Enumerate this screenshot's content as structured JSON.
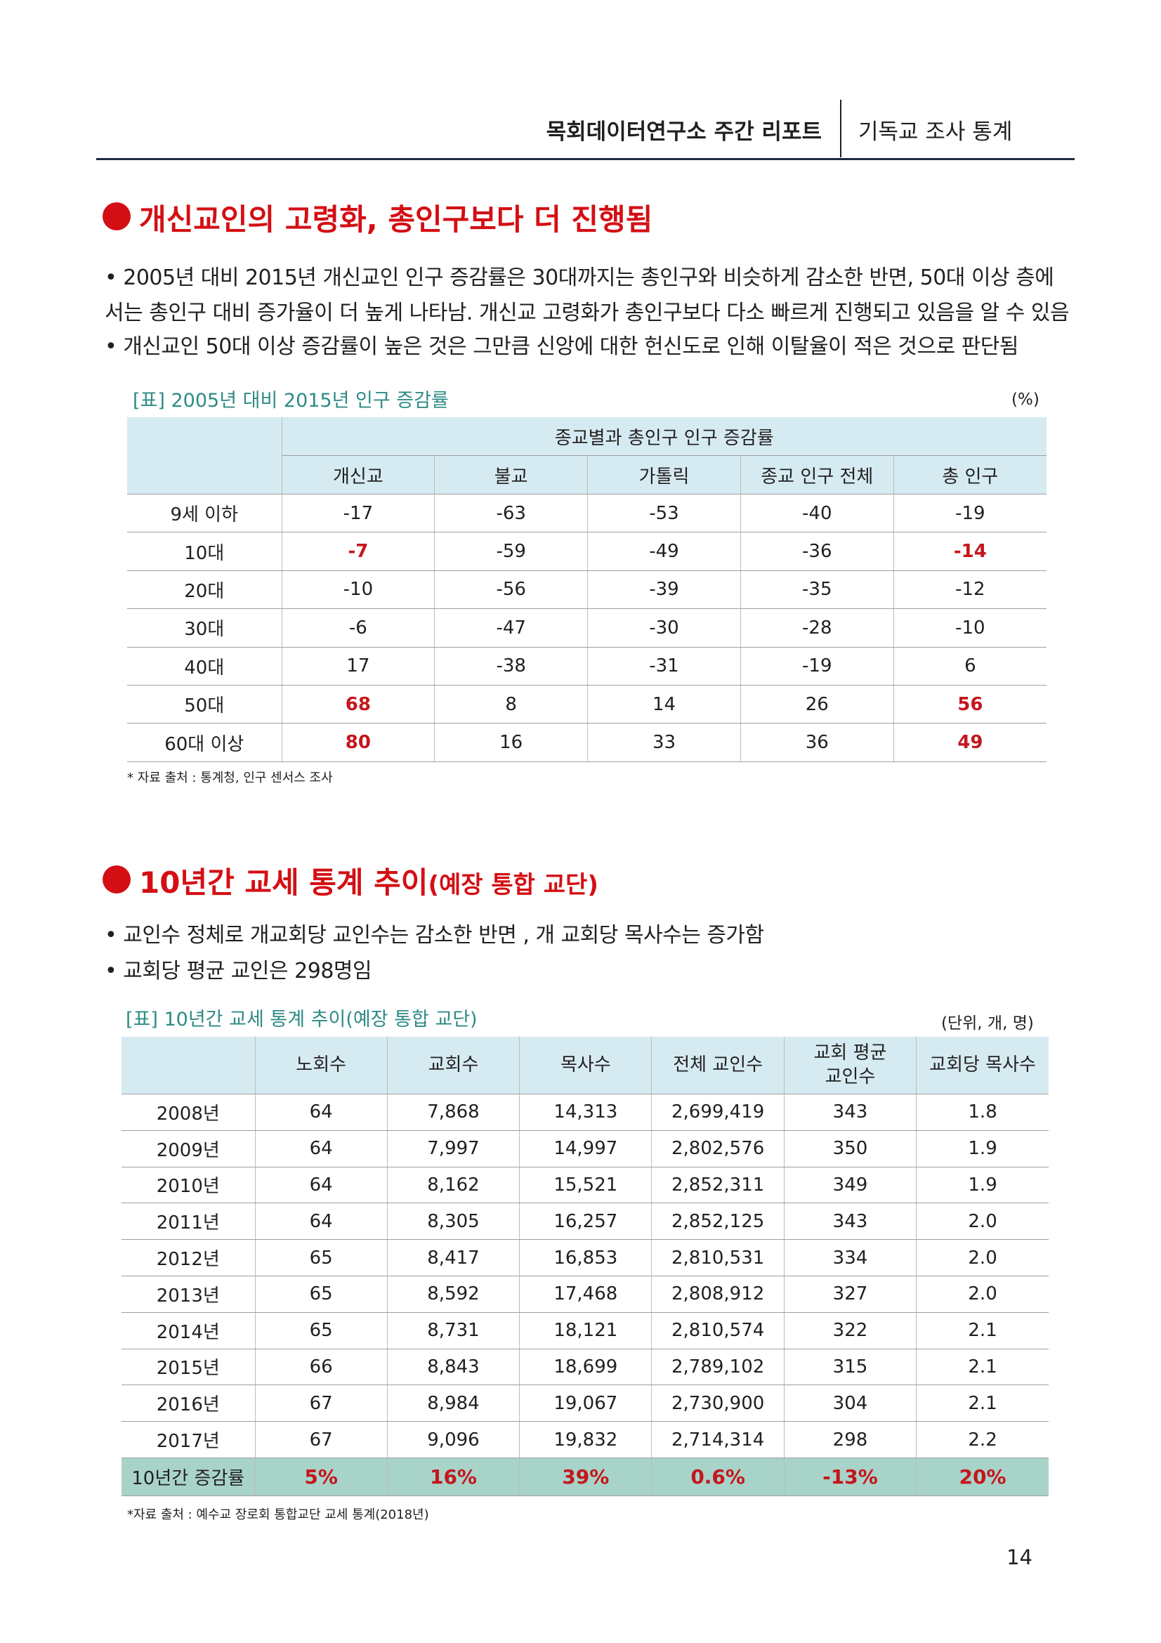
{
  "header": {
    "brand": "목회데이터연구소 주간 리포트",
    "topic": "기독교 조사 통계"
  },
  "section1": {
    "title": "개신교인의 고령화, 총인구보다 더 진행됨",
    "bullets": [
      "• 2005년 대비 2015년  개신교인 인구 증감률은 30대까지는 총인구와 비슷하게 감소한 반면, 50대 이상 층에",
      "서는 총인구 대비 증가율이 더 높게 나타남. 개신교 고령화가 총인구보다 다소 빠르게 진행되고 있음을 알 수 있음",
      "• 개신교인 50대 이상 증감률이 높은 것은 그만큼 신앙에 대한 헌신도로 인해 이탈율이 적은 것으로 판단됨"
    ],
    "table": {
      "caption": "[표] 2005년 대비 2015년 인구 증감률",
      "unit": "(%)",
      "group_header": "종교별과 총인구 인구 증감률",
      "columns": [
        "개신교",
        "불교",
        "가톨릭",
        "종교 인구 전체",
        "총 인구"
      ],
      "rows": [
        {
          "label": "9세 이하",
          "values": [
            "-17",
            "-63",
            "-53",
            "-40",
            "-19"
          ]
        },
        {
          "label": "10대",
          "values": [
            "-7",
            "-59",
            "-49",
            "-36",
            "-14"
          ]
        },
        {
          "label": "20대",
          "values": [
            "-10",
            "-56",
            "-39",
            "-35",
            "-12"
          ]
        },
        {
          "label": "30대",
          "values": [
            "-6",
            "-47",
            "-30",
            "-28",
            "-10"
          ]
        },
        {
          "label": "40대",
          "values": [
            "17",
            "-38",
            "-31",
            "-19",
            "6"
          ]
        },
        {
          "label": "50대",
          "values": [
            "68",
            "8",
            "14",
            "26",
            "56"
          ]
        },
        {
          "label": "60대 이상",
          "values": [
            "80",
            "16",
            "33",
            "36",
            "49"
          ]
        }
      ],
      "highlight_color": "#c4161c",
      "source": "* 자료 출처 : 통계청, 인구 센서스 조사"
    }
  },
  "section2": {
    "title": "10년간 교세 통계 추이",
    "title_sub": "(예장 통합 교단)",
    "bullets": [
      "• 교인수 정체로 개교회당 교인수는 감소한 반면 , 개 교회당 목사수는 증가함",
      "• 교회당 평균 교인은 298명임"
    ],
    "table": {
      "caption": "[표] 10년간 교세 통계 추이(예장 통합 교단)",
      "unit": "(단위, 개, 명)",
      "columns": [
        "노회수",
        "교회수",
        "목사수",
        "전체 교인수",
        "교회 평균 교인수",
        "교회당 목사수"
      ],
      "rows": [
        {
          "label": "2008년",
          "values": [
            "64",
            "7,868",
            "14,313",
            "2,699,419",
            "343",
            "1.8"
          ]
        },
        {
          "label": "2009년",
          "values": [
            "64",
            "7,997",
            "14,997",
            "2,802,576",
            "350",
            "1.9"
          ]
        },
        {
          "label": "2010년",
          "values": [
            "64",
            "8,162",
            "15,521",
            "2,852,311",
            "349",
            "1.9"
          ]
        },
        {
          "label": "2011년",
          "values": [
            "64",
            "8,305",
            "16,257",
            "2,852,125",
            "343",
            "2.0"
          ]
        },
        {
          "label": "2012년",
          "values": [
            "65",
            "8,417",
            "16,853",
            "2,810,531",
            "334",
            "2.0"
          ]
        },
        {
          "label": "2013년",
          "values": [
            "65",
            "8,592",
            "17,468",
            "2,808,912",
            "327",
            "2.0"
          ]
        },
        {
          "label": "2014년",
          "values": [
            "65",
            "8,731",
            "18,121",
            "2,810,574",
            "322",
            "2.1"
          ]
        },
        {
          "label": "2015년",
          "values": [
            "66",
            "8,843",
            "18,699",
            "2,789,102",
            "315",
            "2.1"
          ]
        },
        {
          "label": "2016년",
          "values": [
            "67",
            "8,984",
            "19,067",
            "2,730,900",
            "304",
            "2.1"
          ]
        },
        {
          "label": "2017년",
          "values": [
            "67",
            "9,096",
            "19,832",
            "2,714,314",
            "298",
            "2.2"
          ]
        }
      ],
      "total_row": {
        "label": "10년간 증감률",
        "values": [
          "5%",
          "16%",
          "39%",
          "0.6%",
          "-13%",
          "20%"
        ]
      },
      "source": "*자료 출처 : 예수교 장로회 통합교단 교세 통계(2018년)"
    }
  },
  "page_number": "14",
  "colors": {
    "accent_red": "#d40f14",
    "header_fill": "#d5ebf1",
    "total_fill": "#a8d3c9",
    "caption_teal": "#2e8b85"
  }
}
